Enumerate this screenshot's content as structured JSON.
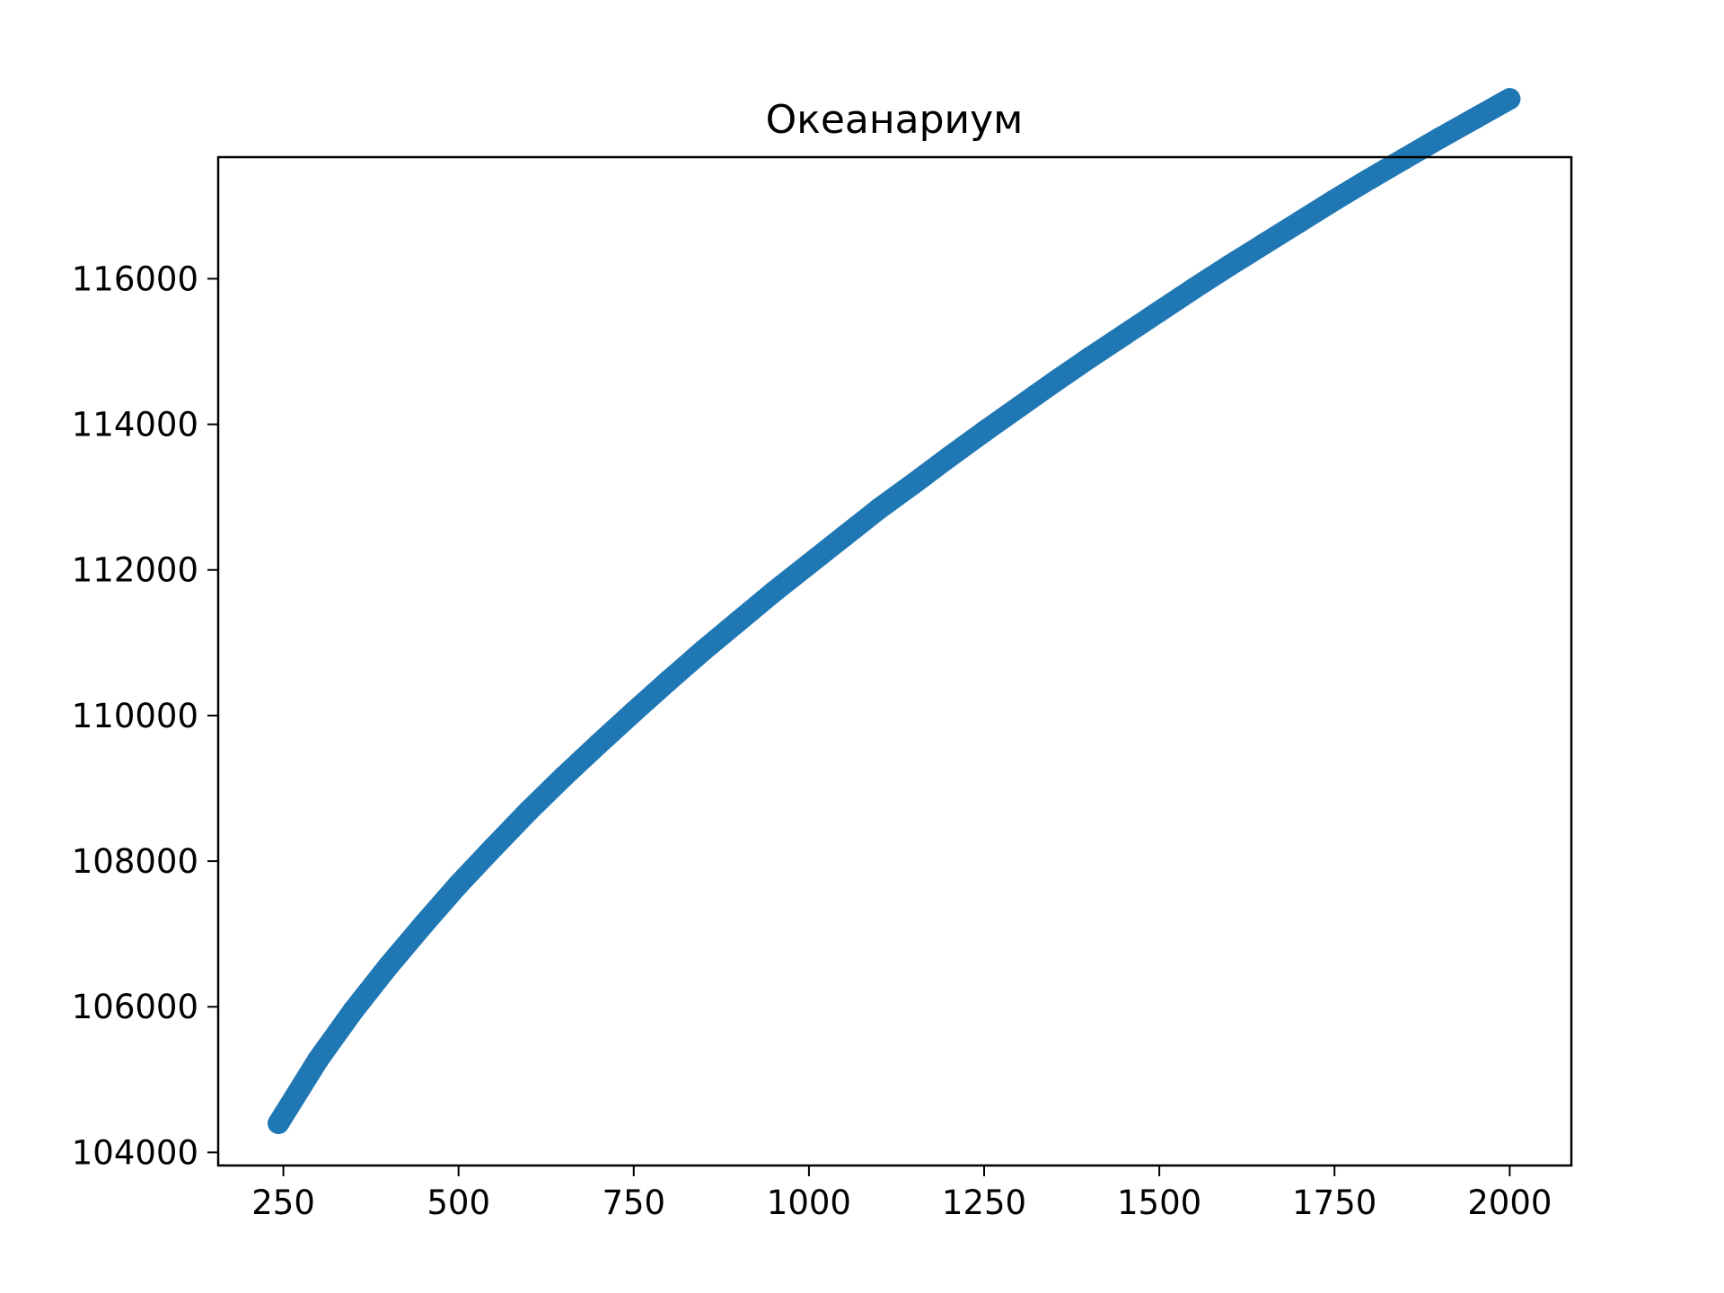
{
  "chart_data": {
    "type": "scatter",
    "title": "Океанариум",
    "xlabel": "",
    "ylabel": "",
    "xlim": [
      157,
      2088
    ],
    "ylim": [
      103820,
      117670
    ],
    "x_ticks": [
      250,
      500,
      750,
      1000,
      1250,
      1500,
      1750,
      2000
    ],
    "y_ticks": [
      104000,
      106000,
      108000,
      110000,
      112000,
      114000,
      116000
    ],
    "grid": false,
    "legend": "none",
    "color": "#1f77b4",
    "series": [
      {
        "points": [
          [
            243,
            104400
          ],
          [
            300,
            105280
          ],
          [
            350,
            105950
          ],
          [
            400,
            106560
          ],
          [
            450,
            107130
          ],
          [
            500,
            107680
          ],
          [
            550,
            108190
          ],
          [
            600,
            108690
          ],
          [
            650,
            109160
          ],
          [
            700,
            109610
          ],
          [
            750,
            110050
          ],
          [
            800,
            110480
          ],
          [
            850,
            110900
          ],
          [
            900,
            111300
          ],
          [
            950,
            111700
          ],
          [
            1000,
            112080
          ],
          [
            1050,
            112460
          ],
          [
            1100,
            112840
          ],
          [
            1150,
            113190
          ],
          [
            1200,
            113550
          ],
          [
            1250,
            113900
          ],
          [
            1300,
            114240
          ],
          [
            1350,
            114580
          ],
          [
            1400,
            114910
          ],
          [
            1450,
            115230
          ],
          [
            1500,
            115550
          ],
          [
            1550,
            115870
          ],
          [
            1600,
            116180
          ],
          [
            1650,
            116480
          ],
          [
            1700,
            116780
          ],
          [
            1750,
            117080
          ],
          [
            1800,
            117370
          ],
          [
            1850,
            117650
          ],
          [
            1900,
            117930
          ],
          [
            1950,
            118200
          ],
          [
            2000,
            118470
          ]
        ]
      }
    ]
  }
}
